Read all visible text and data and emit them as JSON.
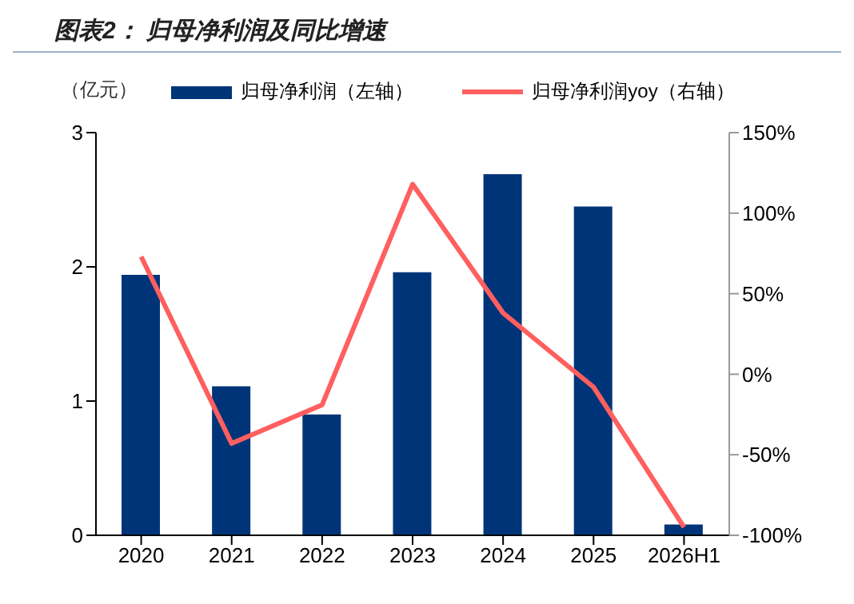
{
  "chart_data": {
    "type": "bar",
    "title": "图表2： 归母净利润及同比增速",
    "ylabel": "（亿元）",
    "categories": [
      "2020",
      "2021",
      "2022",
      "2023",
      "2024",
      "2025",
      "2026H1"
    ],
    "series": [
      {
        "name": "归母净利润（左轴）",
        "color": "#003478",
        "values": [
          1.94,
          1.11,
          0.9,
          1.96,
          2.69,
          2.45,
          0.08
        ]
      },
      {
        "name": "归母净利润yoy（右轴）",
        "type": "line",
        "axis": "y2",
        "color": "#ff5f5f",
        "values": [
          73,
          -43,
          -19,
          118,
          38,
          -8,
          -95
        ]
      }
    ],
    "ylim": [
      0,
      3
    ],
    "yticks": [
      0,
      1,
      2,
      3
    ],
    "y2lim": [
      -100,
      150
    ],
    "y2ticks": [
      {
        "value": -100,
        "label": "-100%"
      },
      {
        "value": -50,
        "label": "-50%"
      },
      {
        "value": 0,
        "label": "0%"
      },
      {
        "value": 50,
        "label": "50%"
      },
      {
        "value": 100,
        "label": "100%"
      },
      {
        "value": 150,
        "label": "150%"
      }
    ],
    "legend": "top",
    "marker": "none",
    "grid": false
  }
}
